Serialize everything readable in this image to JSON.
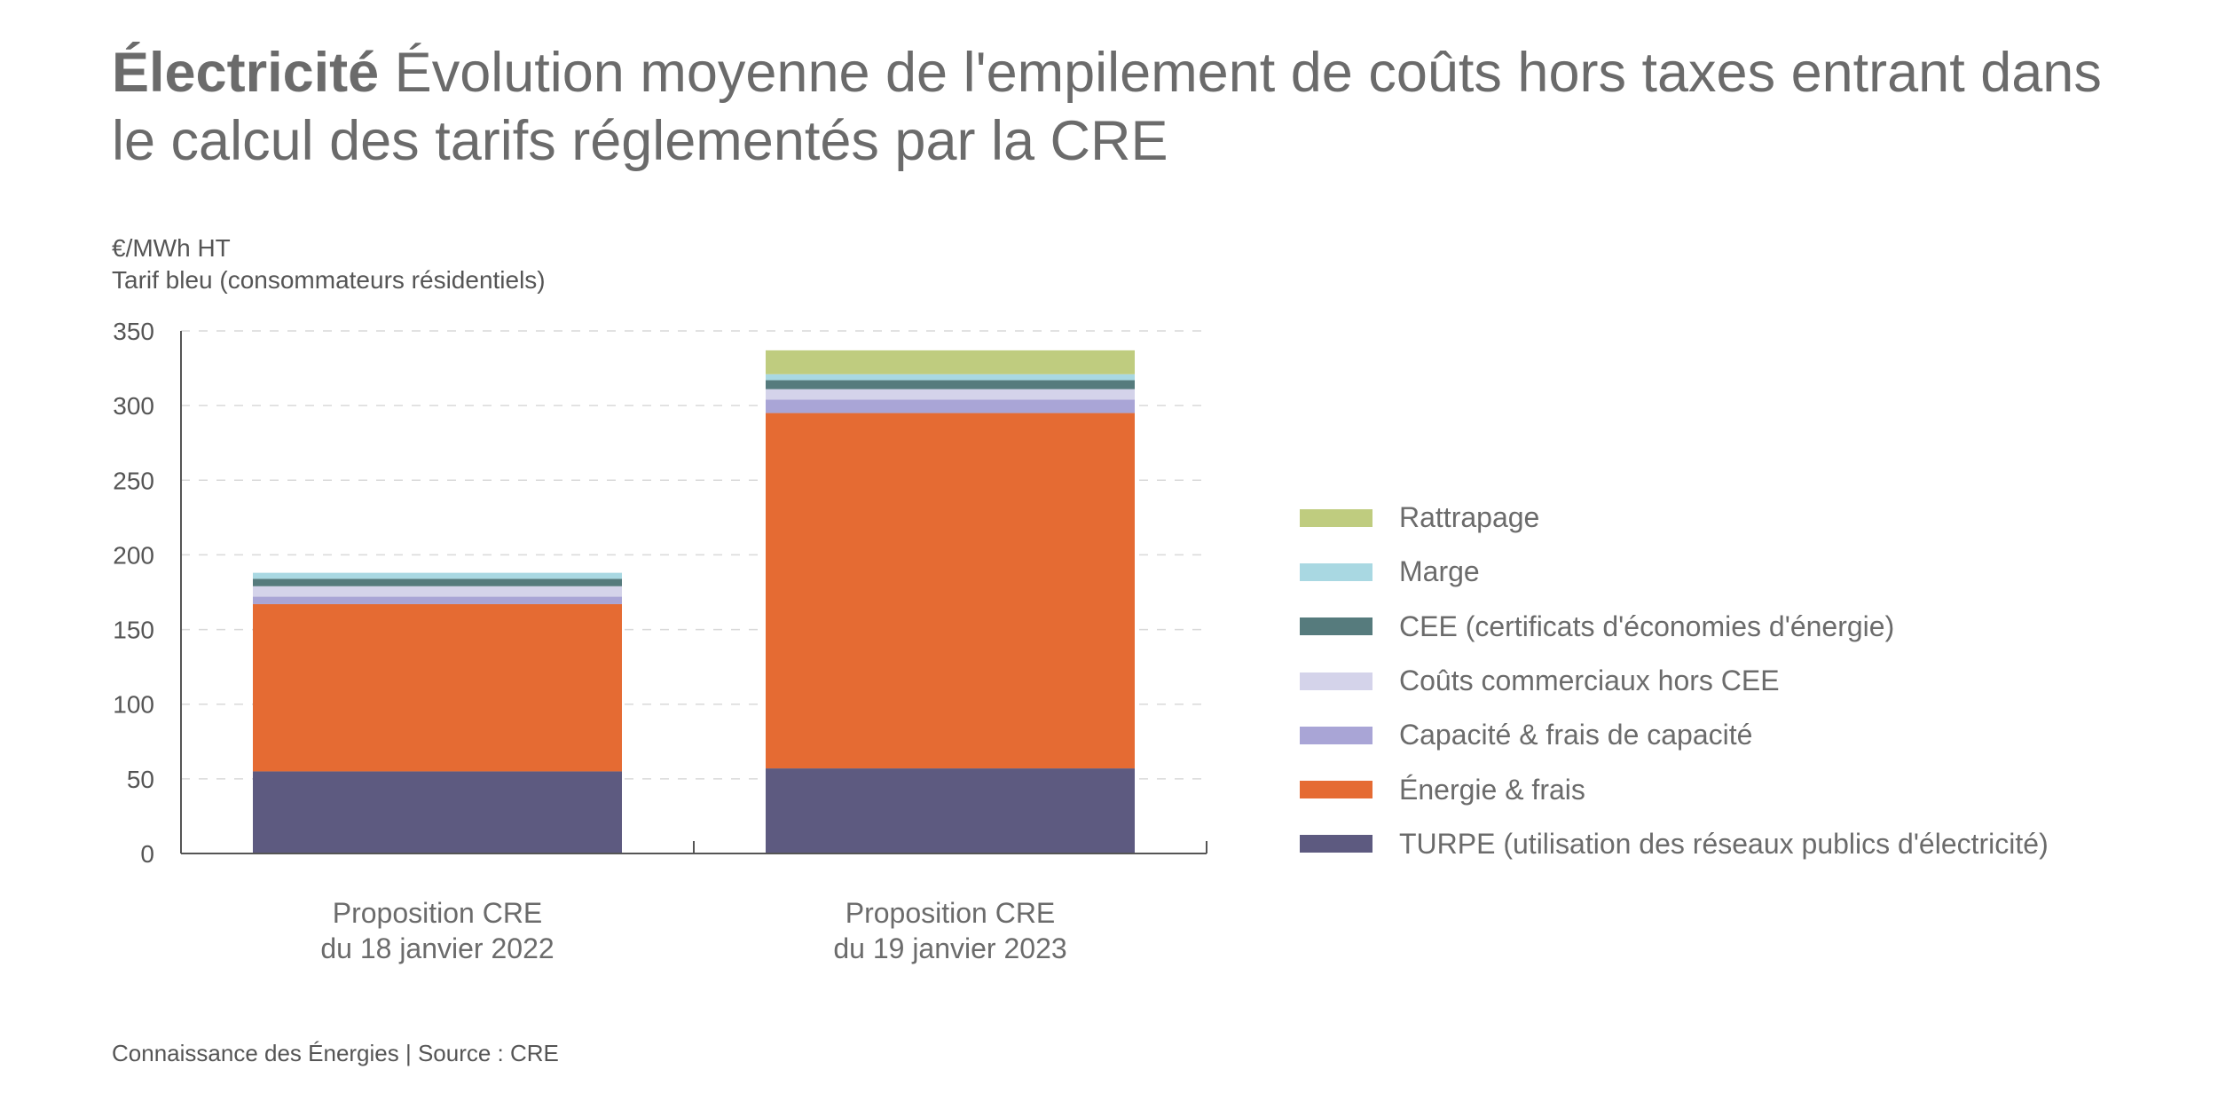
{
  "title_bold": "Électricité",
  "title_rest": " Évolution moyenne de l'empilement de coûts hors taxes entrant dans le calcul des tarifs réglementés par la CRE",
  "unit_line1": "€/MWh HT",
  "unit_line2": "Tarif bleu (consommateurs résidentiels)",
  "footer": "Connaissance des Énergies | Source : CRE",
  "chart_data": {
    "type": "bar",
    "stacked": true,
    "title": "Électricité Évolution moyenne de l'empilement de coûts hors taxes entrant dans le calcul des tarifs réglementés par la CRE",
    "ylabel": "€/MWh HT",
    "ylim": [
      0,
      350
    ],
    "yticks": [
      0,
      50,
      100,
      150,
      200,
      250,
      300,
      350
    ],
    "grid": true,
    "legend_position": "right",
    "categories": [
      [
        "Proposition CRE",
        "du 18 janvier 2022"
      ],
      [
        "Proposition CRE",
        "du 19 janvier 2023"
      ]
    ],
    "series": [
      {
        "name": "TURPE (utilisation des réseaux publics d'électricité)",
        "color": "#5d5a80",
        "values": [
          55,
          57
        ]
      },
      {
        "name": "Énergie & frais",
        "color": "#e56b33",
        "values": [
          112,
          238
        ]
      },
      {
        "name": "Capacité & frais de capacité",
        "color": "#a9a5d6",
        "values": [
          5,
          9
        ]
      },
      {
        "name": "Coûts commerciaux hors CEE",
        "color": "#d4d3ea",
        "values": [
          7,
          7
        ]
      },
      {
        "name": "CEE (certificats d'économies d'énergie)",
        "color": "#567b7d",
        "values": [
          5,
          6
        ]
      },
      {
        "name": "Marge",
        "color": "#a9d8e2",
        "values": [
          4,
          4
        ]
      },
      {
        "name": "Rattrapage",
        "color": "#bfcc7f",
        "values": [
          0,
          16
        ]
      }
    ]
  }
}
